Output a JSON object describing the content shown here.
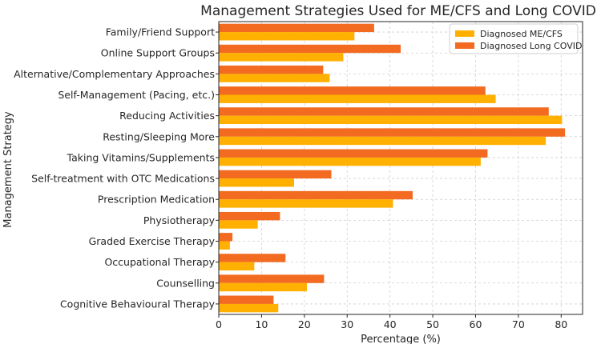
{
  "chart_data": {
    "type": "bar",
    "orientation": "horizontal",
    "title": "Management Strategies Used for ME/CFS and Long COVID",
    "xlabel": "Percentage (%)",
    "ylabel": "Management Strategy",
    "xlim": [
      0,
      85
    ],
    "xticks": [
      0,
      10,
      20,
      30,
      40,
      50,
      60,
      70,
      80
    ],
    "grid": true,
    "legend_position": "top-right",
    "categories": [
      "Family/Friend Support",
      "Online Support Groups",
      "Alternative/Complementary Approaches",
      "Self-Management (Pacing, etc.)",
      "Reducing Activities",
      "Resting/Sleeping More",
      "Taking Vitamins/Supplements",
      "Self-treatment with OTC Medications",
      "Prescription Medication",
      "Physiotherapy",
      "Graded Exercise Therapy",
      "Occupational Therapy",
      "Counselling",
      "Cognitive Behavioural Therapy"
    ],
    "series": [
      {
        "name": "Diagnosed ME/CFS",
        "color": "#FFB000",
        "values": [
          31.7,
          29.1,
          25.9,
          64.7,
          80.2,
          76.4,
          61.2,
          17.6,
          40.7,
          9.1,
          2.6,
          8.3,
          20.6,
          13.9
        ]
      },
      {
        "name": "Diagnosed Long COVID",
        "color": "#F26B21",
        "values": [
          36.3,
          42.5,
          24.4,
          62.3,
          77.1,
          80.9,
          62.8,
          26.3,
          45.3,
          14.3,
          3.2,
          15.6,
          24.6,
          12.8
        ]
      }
    ]
  }
}
